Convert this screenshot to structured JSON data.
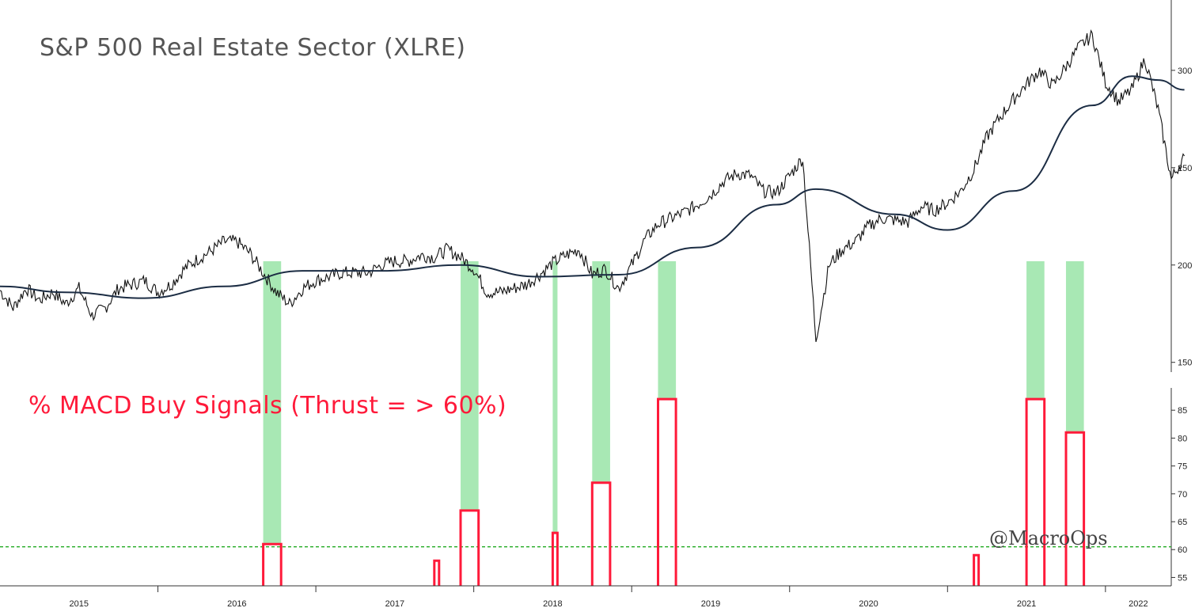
{
  "chart_data": [
    {
      "type": "line",
      "title": "S&P 500 Real Estate Sector (XLRE)",
      "x_range": [
        "2015-01",
        "2022-06"
      ],
      "y_ticks": [
        150,
        200,
        250,
        300
      ],
      "ylim": [
        145,
        328
      ],
      "series": [
        {
          "points": [
            [
              "2015-01",
              187
            ],
            [
              "2015-02",
              178
            ],
            [
              "2015-03",
              188
            ],
            [
              "2015-04",
              182
            ],
            [
              "2015-05",
              186
            ],
            [
              "2015-06",
              180
            ],
            [
              "2015-07",
              188
            ],
            [
              "2015-08",
              174
            ],
            [
              "2015-09",
              178
            ],
            [
              "2015-10",
              188
            ],
            [
              "2015-11",
              190
            ],
            [
              "2015-12",
              192
            ],
            [
              "2016-01",
              186
            ],
            [
              "2016-02",
              190
            ],
            [
              "2016-03",
              198
            ],
            [
              "2016-04",
              203
            ],
            [
              "2016-05",
              207
            ],
            [
              "2016-06",
              212
            ],
            [
              "2016-07",
              212
            ],
            [
              "2016-08",
              206
            ],
            [
              "2016-09",
              196
            ],
            [
              "2016-10",
              186
            ],
            [
              "2016-11",
              180
            ],
            [
              "2016-12",
              188
            ],
            [
              "2017-01",
              192
            ],
            [
              "2017-02",
              194
            ],
            [
              "2017-03",
              196
            ],
            [
              "2017-04",
              196
            ],
            [
              "2017-05",
              196
            ],
            [
              "2017-06",
              200
            ],
            [
              "2017-07",
              202
            ],
            [
              "2017-08",
              202
            ],
            [
              "2017-09",
              205
            ],
            [
              "2017-10",
              204
            ],
            [
              "2017-11",
              208
            ],
            [
              "2017-12",
              204
            ],
            [
              "2018-01",
              198
            ],
            [
              "2018-02",
              186
            ],
            [
              "2018-03",
              186
            ],
            [
              "2018-04",
              188
            ],
            [
              "2018-05",
              190
            ],
            [
              "2018-06",
              195
            ],
            [
              "2018-07",
              201
            ],
            [
              "2018-08",
              205
            ],
            [
              "2018-09",
              208
            ],
            [
              "2018-10",
              195
            ],
            [
              "2018-11",
              198
            ],
            [
              "2018-12",
              188
            ],
            [
              "2019-01",
              200
            ],
            [
              "2019-02",
              213
            ],
            [
              "2019-03",
              221
            ],
            [
              "2019-04",
              224
            ],
            [
              "2019-05",
              227
            ],
            [
              "2019-06",
              231
            ],
            [
              "2019-07",
              236
            ],
            [
              "2019-08",
              243
            ],
            [
              "2019-09",
              247
            ],
            [
              "2019-10",
              246
            ],
            [
              "2019-11",
              238
            ],
            [
              "2019-12",
              237
            ],
            [
              "2020-01",
              246
            ],
            [
              "2020-02",
              255
            ],
            [
              "2020-03",
              162
            ],
            [
              "2020-04",
              200
            ],
            [
              "2020-05",
              208
            ],
            [
              "2020-06",
              212
            ],
            [
              "2020-07",
              220
            ],
            [
              "2020-08",
              224
            ],
            [
              "2020-09",
              223
            ],
            [
              "2020-10",
              222
            ],
            [
              "2020-11",
              230
            ],
            [
              "2020-12",
              228
            ],
            [
              "2021-01",
              232
            ],
            [
              "2021-02",
              238
            ],
            [
              "2021-03",
              249
            ],
            [
              "2021-04",
              266
            ],
            [
              "2021-05",
              276
            ],
            [
              "2021-06",
              285
            ],
            [
              "2021-07",
              293
            ],
            [
              "2021-08",
              300
            ],
            [
              "2021-09",
              292
            ],
            [
              "2021-10",
              302
            ],
            [
              "2021-11",
              312
            ],
            [
              "2021-12",
              318
            ],
            [
              "2022-01",
              294
            ],
            [
              "2022-02",
              284
            ],
            [
              "2022-03",
              290
            ],
            [
              "2022-04",
              306
            ],
            [
              "2022-05",
              280
            ],
            [
              "2022-06",
              244
            ],
            [
              "2022-07",
              256
            ]
          ]
        },
        {
          "points": [
            [
              "2015-01",
              189
            ],
            [
              "2015-06",
              186
            ],
            [
              "2015-12",
              183
            ],
            [
              "2016-06",
              189
            ],
            [
              "2016-12",
              197
            ],
            [
              "2017-06",
              197
            ],
            [
              "2017-12",
              200
            ],
            [
              "2018-06",
              194
            ],
            [
              "2018-12",
              195
            ],
            [
              "2019-06",
              209
            ],
            [
              "2019-12",
              231
            ],
            [
              "2020-03",
              239
            ],
            [
              "2020-09",
              226
            ],
            [
              "2021-01",
              218
            ],
            [
              "2021-06",
              238
            ],
            [
              "2021-12",
              282
            ],
            [
              "2022-03",
              297
            ],
            [
              "2022-05",
              295
            ],
            [
              "2022-07",
              290
            ]
          ]
        }
      ]
    },
    {
      "type": "line",
      "title": "% MACD Buy Signals (Thrust = > 60%)",
      "x_range": [
        "2015-01",
        "2022-06"
      ],
      "y_ticks": [
        55,
        60,
        65,
        70,
        75,
        80,
        85
      ],
      "ylim": [
        53.5,
        89
      ],
      "threshold": 60.5,
      "x_labels": [
        "2015",
        "2016",
        "2017",
        "2018",
        "2019",
        "2020",
        "2021",
        "2022"
      ],
      "signals": [
        {
          "start": "2016-09",
          "end": "2016-10",
          "peak": 61
        },
        {
          "start": "2017-10",
          "end": "2017-10",
          "peak": 58
        },
        {
          "start": "2017-12",
          "end": "2018-01",
          "peak": 67
        },
        {
          "start": "2018-07",
          "end": "2018-07",
          "peak": 63
        },
        {
          "start": "2018-10",
          "end": "2018-11",
          "peak": 72
        },
        {
          "start": "2019-03",
          "end": "2019-04",
          "peak": 87
        },
        {
          "start": "2021-03",
          "end": "2021-03",
          "peak": 59
        },
        {
          "start": "2021-07",
          "end": "2021-08",
          "peak": 87
        },
        {
          "start": "2021-10",
          "end": "2021-11",
          "peak": 81
        }
      ]
    }
  ],
  "watermark": "@MacroOps",
  "colors": {
    "price": "#111111",
    "moving_average": "#1c2d44",
    "signal": "#ff1a3a",
    "highlight": "#a8e8b4",
    "threshold": "#22aa22"
  }
}
